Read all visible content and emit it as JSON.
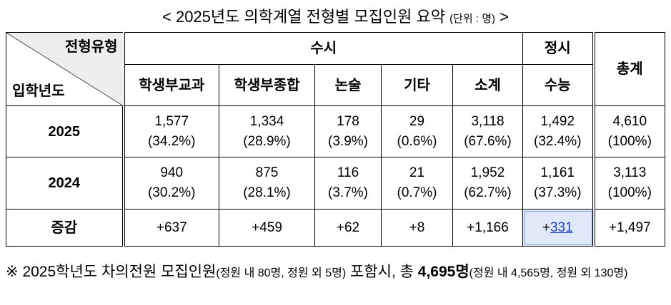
{
  "title": {
    "main": "< 2025년도 의학계열 전형별 모집인원 요약",
    "unit": "(단위 : 명)",
    "close": ">"
  },
  "table": {
    "corner": {
      "top": "전형유형",
      "bottom": "입학년도"
    },
    "groups": [
      "수시",
      "정시"
    ],
    "total_header": "총계",
    "columns": [
      "학생부교과",
      "학생부종합",
      "논술",
      "기타",
      "소계",
      "수능"
    ],
    "rows": [
      {
        "label": "2025",
        "cells": [
          [
            "1,577",
            "(34.2%)"
          ],
          [
            "1,334",
            "(28.9%)"
          ],
          [
            "178",
            "(3.9%)"
          ],
          [
            "29",
            "(0.6%)"
          ],
          [
            "3,118",
            "(67.6%)"
          ],
          [
            "1,492",
            "(32.4%)"
          ],
          [
            "4,610",
            "(100%)"
          ]
        ]
      },
      {
        "label": "2024",
        "cells": [
          [
            "940",
            "(30.2%)"
          ],
          [
            "875",
            "(28.1%)"
          ],
          [
            "116",
            "(3.7%)"
          ],
          [
            "21",
            "(0.7%)"
          ],
          [
            "1,952",
            "(62.7%)"
          ],
          [
            "1,161",
            "(37.3%)"
          ],
          [
            "3,113",
            "(100%)"
          ]
        ]
      },
      {
        "label": "증감",
        "cells": [
          [
            "+637"
          ],
          [
            "+459"
          ],
          [
            "+62"
          ],
          [
            "+8"
          ],
          [
            "+1,166"
          ],
          [
            "+",
            "331"
          ],
          [
            "+1,497"
          ]
        ]
      }
    ]
  },
  "footnote": {
    "mark": "※",
    "lead": "2025학년도 차의전원 모집인원",
    "detail": "(정원 내 80명, 정원 외 5명)",
    "middle": "포함시, 총",
    "total": "4,695명",
    "total_detail": "(정원 내 4,565명, 정원 외 130명)"
  }
}
